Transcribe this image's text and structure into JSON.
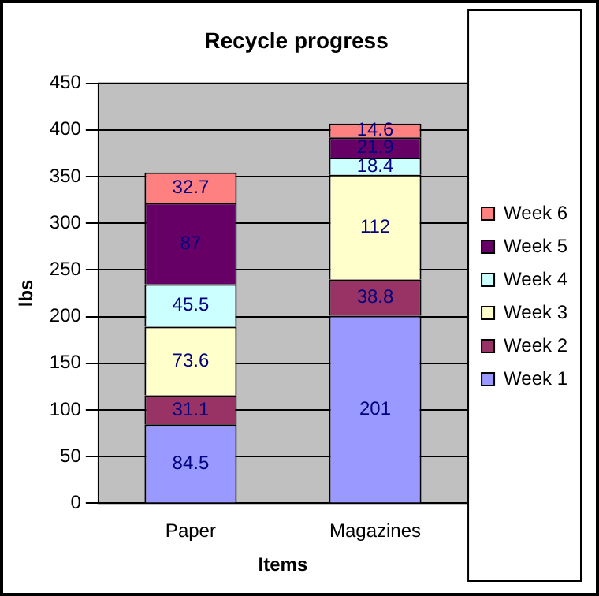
{
  "chart_data": {
    "type": "bar",
    "title": "Recycle progress",
    "xlabel": "Items",
    "ylabel": "lbs",
    "categories": [
      "Paper",
      "Magazines"
    ],
    "stacked": true,
    "data_labels": true,
    "grid": "y",
    "legend": "right",
    "ylim": [
      0,
      450
    ],
    "yticks": [
      0,
      50,
      100,
      150,
      200,
      250,
      300,
      350,
      400,
      450
    ],
    "series": [
      {
        "name": "Week 1",
        "color": "#9999ff",
        "values": [
          84.5,
          201
        ]
      },
      {
        "name": "Week 2",
        "color": "#993366",
        "values": [
          31.1,
          38.8
        ]
      },
      {
        "name": "Week 3",
        "color": "#ffffcc",
        "values": [
          73.6,
          112
        ]
      },
      {
        "name": "Week 4",
        "color": "#ccffff",
        "values": [
          45.5,
          18.4
        ]
      },
      {
        "name": "Week 5",
        "color": "#660066",
        "values": [
          87,
          21.9
        ]
      },
      {
        "name": "Week 6",
        "color": "#ff8080",
        "values": [
          32.7,
          14.6
        ]
      }
    ]
  }
}
